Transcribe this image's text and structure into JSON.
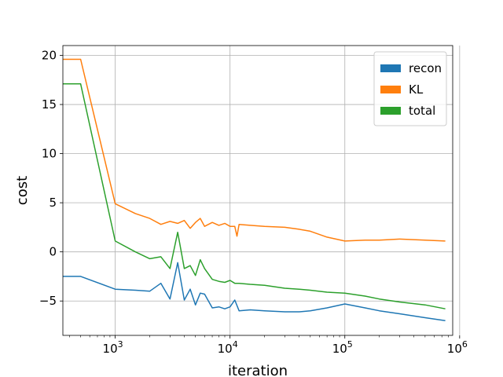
{
  "chart_data": {
    "type": "line",
    "title": "",
    "xlabel": "iteration",
    "ylabel": "cost",
    "xscale": "log",
    "xlim": [
      350,
      870000
    ],
    "ylim": [
      -8.5,
      21
    ],
    "grid": true,
    "legend_position": "top-right",
    "x_ticks": [
      {
        "value": 1000,
        "base": "10",
        "exp": "3"
      },
      {
        "value": 10000,
        "base": "10",
        "exp": "4"
      },
      {
        "value": 100000,
        "base": "10",
        "exp": "5"
      },
      {
        "value": 1000000,
        "base": "10",
        "exp": "6"
      }
    ],
    "y_ticks": [
      -5,
      0,
      5,
      10,
      15,
      20
    ],
    "y_tick_labels": [
      "−5",
      "0",
      "5",
      "10",
      "15",
      "20"
    ],
    "series": [
      {
        "name": "recon",
        "color": "#1f77b4",
        "x": [
          350,
          500,
          1000,
          1500,
          2000,
          2500,
          3000,
          3500,
          4000,
          4500,
          5000,
          5500,
          6000,
          7000,
          8000,
          9000,
          10000,
          11000,
          12000,
          15000,
          20000,
          30000,
          40000,
          50000,
          70000,
          100000,
          150000,
          200000,
          300000,
          500000,
          750000
        ],
        "y": [
          -2.5,
          -2.5,
          -3.8,
          -3.9,
          -4.0,
          -3.2,
          -4.8,
          -1.1,
          -4.9,
          -3.8,
          -5.4,
          -4.2,
          -4.3,
          -5.7,
          -5.6,
          -5.8,
          -5.6,
          -4.9,
          -6.0,
          -5.9,
          -6.0,
          -6.1,
          -6.1,
          -6.0,
          -5.7,
          -5.3,
          -5.7,
          -6.0,
          -6.3,
          -6.7,
          -7.0
        ]
      },
      {
        "name": "KL",
        "color": "#ff7f0e",
        "x": [
          350,
          500,
          1000,
          1500,
          2000,
          2500,
          3000,
          3500,
          4000,
          4500,
          5000,
          5500,
          6000,
          7000,
          8000,
          9000,
          10000,
          11000,
          11500,
          12000,
          15000,
          20000,
          30000,
          40000,
          50000,
          70000,
          100000,
          150000,
          200000,
          300000,
          500000,
          750000
        ],
        "y": [
          19.6,
          19.6,
          4.9,
          3.9,
          3.4,
          2.8,
          3.1,
          2.9,
          3.2,
          2.4,
          3.0,
          3.4,
          2.6,
          3.0,
          2.7,
          2.9,
          2.6,
          2.6,
          1.6,
          2.8,
          2.7,
          2.6,
          2.5,
          2.3,
          2.1,
          1.5,
          1.1,
          1.2,
          1.2,
          1.3,
          1.2,
          1.1
        ]
      },
      {
        "name": "total",
        "color": "#2ca02c",
        "x": [
          350,
          500,
          1000,
          1500,
          2000,
          2500,
          3000,
          3500,
          4000,
          4500,
          5000,
          5500,
          6000,
          7000,
          8000,
          9000,
          10000,
          11000,
          12000,
          15000,
          20000,
          30000,
          40000,
          50000,
          70000,
          100000,
          150000,
          200000,
          300000,
          500000,
          750000
        ],
        "y": [
          17.1,
          17.1,
          1.1,
          0.0,
          -0.7,
          -0.5,
          -1.7,
          2.0,
          -1.7,
          -1.4,
          -2.4,
          -0.8,
          -1.7,
          -2.8,
          -3.0,
          -3.1,
          -2.9,
          -3.2,
          -3.2,
          -3.3,
          -3.4,
          -3.7,
          -3.8,
          -3.9,
          -4.1,
          -4.2,
          -4.5,
          -4.8,
          -5.1,
          -5.4,
          -5.8
        ]
      }
    ]
  }
}
